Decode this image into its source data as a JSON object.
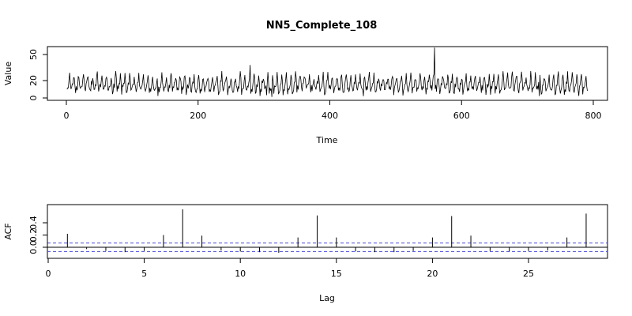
{
  "title": "NN5_Complete_108",
  "chart_data": [
    {
      "type": "line",
      "title": "NN5_Complete_108",
      "xlabel": "Time",
      "ylabel": "Value",
      "xlim": [
        0,
        800
      ],
      "ylim": [
        0,
        60
      ],
      "xticks": [
        0,
        200,
        400,
        600,
        800
      ],
      "yticks": [
        0,
        20,
        50
      ],
      "n_points": 791,
      "approx_range": [
        0,
        60
      ],
      "weekly_period": 7,
      "notable_peaks": [
        {
          "x": 278,
          "y": 38
        },
        {
          "x": 558,
          "y": 58
        }
      ]
    },
    {
      "type": "bar",
      "xlabel": "Lag",
      "ylabel": "ACF",
      "xlim": [
        0,
        29
      ],
      "ylim": [
        -0.2,
        0.65
      ],
      "xticks": [
        0,
        5,
        10,
        15,
        20,
        25
      ],
      "yticks": [
        0.0,
        0.2,
        0.4
      ],
      "lags": [
        1,
        2,
        3,
        4,
        5,
        6,
        7,
        8,
        9,
        10,
        11,
        12,
        13,
        14,
        15,
        16,
        17,
        18,
        19,
        20,
        21,
        22,
        23,
        24,
        25,
        26,
        27,
        28
      ],
      "values": [
        0.22,
        -0.03,
        -0.06,
        -0.08,
        -0.06,
        0.2,
        0.62,
        0.19,
        -0.05,
        -0.07,
        -0.08,
        -0.09,
        0.16,
        0.52,
        0.16,
        -0.07,
        -0.08,
        -0.08,
        -0.06,
        0.16,
        0.51,
        0.19,
        -0.06,
        -0.07,
        -0.06,
        -0.05,
        0.16,
        0.55
      ],
      "ci_bound": 0.07
    }
  ]
}
